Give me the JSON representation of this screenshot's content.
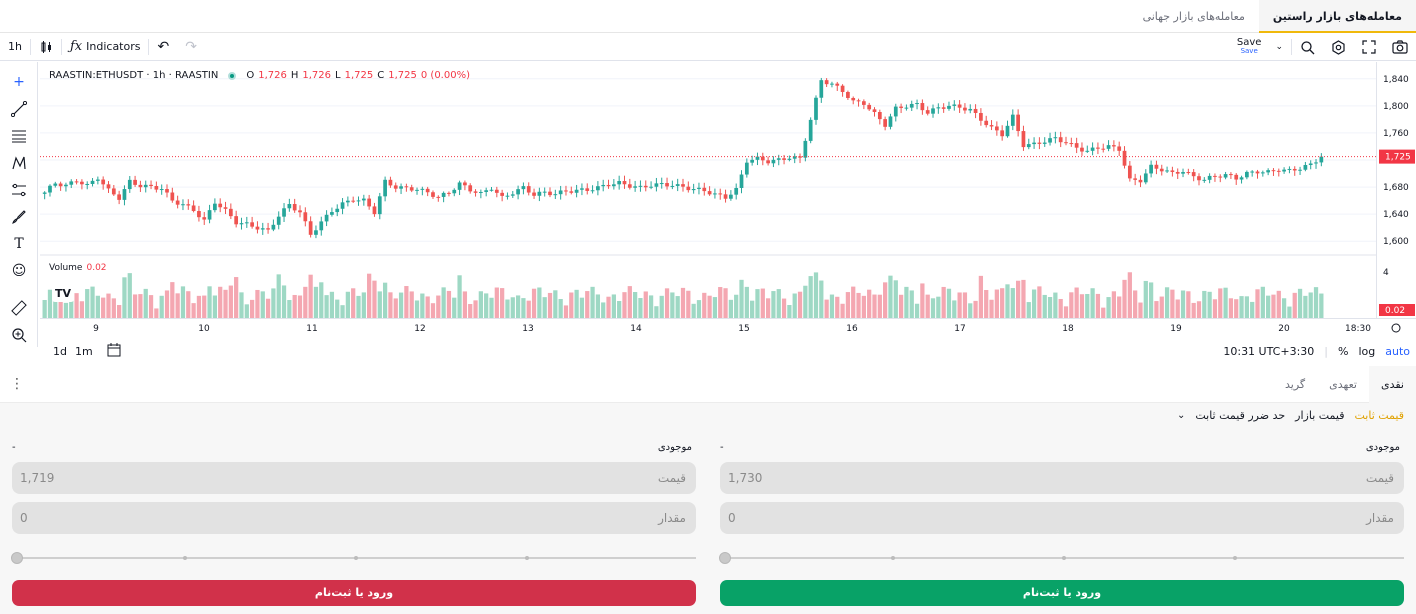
{
  "top_tabs": [
    {
      "label": "معامله‌های بازار راستین",
      "active": true
    },
    {
      "label": "معامله‌های بازار جهانی",
      "active": false
    }
  ],
  "toolbar": {
    "interval": "1h",
    "indicators_label": "Indicators",
    "save_label": "Save",
    "save_sub": "Save"
  },
  "legend": {
    "symbol": "RAASTIN:ETHUSDT · 1h · RAASTIN",
    "o_label": "O",
    "o": "1,726",
    "h_label": "H",
    "h": "1,726",
    "l_label": "L",
    "l": "1,725",
    "c_label": "C",
    "c": "1,725",
    "change": "0 (0.00%)"
  },
  "volume_legend": {
    "label": "Volume",
    "value": "0.02"
  },
  "price_axis": {
    "ticks": [
      "1,840",
      "1,800",
      "1,760",
      "1,725",
      "1,680",
      "1,640",
      "1,600"
    ],
    "last_price": "1,725",
    "volume_tick": "4",
    "volume_last": "0.02"
  },
  "time_axis": {
    "ticks": [
      "9",
      "10",
      "11",
      "12",
      "13",
      "14",
      "15",
      "16",
      "17",
      "18",
      "19",
      "20",
      "18:30"
    ]
  },
  "bottom_bar": {
    "range_1d": "1d",
    "range_1m": "1m",
    "clock": "10:31 UTC+3:30",
    "percent": "%",
    "log": "log",
    "auto": "auto"
  },
  "order_panel": {
    "mode_tabs": [
      {
        "label": "نقدی",
        "active": true
      },
      {
        "label": "تعهدی",
        "active": false
      },
      {
        "label": "گرید",
        "active": false
      }
    ],
    "order_types": [
      {
        "label": "قیمت ثابت",
        "active": true
      },
      {
        "label": "قیمت بازار",
        "active": false
      },
      {
        "label": "حد ضرر قیمت ثابت",
        "active": false
      }
    ],
    "buy": {
      "available_label": "موجودی",
      "available_value": "-",
      "price_label": "قیمت",
      "price_value": "1,730",
      "amount_label": "مقدار",
      "amount_value": "0",
      "button_label": "ورود یا ثبت‌نام",
      "color": "#08a267"
    },
    "sell": {
      "available_label": "موجودی",
      "available_value": "-",
      "price_label": "قیمت",
      "price_value": "1,719",
      "amount_label": "مقدار",
      "amount_value": "0",
      "button_label": "ورود یا ثبت‌نام",
      "color": "#d1314a"
    }
  },
  "chart_data": {
    "type": "candlestick",
    "title": "RAASTIN:ETHUSDT · 1h · RAASTIN",
    "up_color": "#26a69a",
    "down_color": "#ef5350",
    "y_range": [
      1590,
      1850
    ],
    "y_ticks": [
      1600,
      1640,
      1680,
      1720,
      1760,
      1800,
      1840
    ],
    "last_price": 1725,
    "x_ticks": [
      "9",
      "10",
      "11",
      "12",
      "13",
      "14",
      "15",
      "16",
      "17",
      "18",
      "19",
      "20",
      "18:30"
    ],
    "close_path": [
      1672,
      1686,
      1682,
      1690,
      1682,
      1694,
      1675,
      1664,
      1688,
      1682,
      1680,
      1678,
      1660,
      1654,
      1646,
      1630,
      1658,
      1645,
      1628,
      1625,
      1620,
      1615,
      1638,
      1654,
      1643,
      1610,
      1628,
      1645,
      1655,
      1662,
      1660,
      1643,
      1688,
      1680,
      1678,
      1677,
      1672,
      1665,
      1672,
      1685,
      1676,
      1670,
      1679,
      1664,
      1672,
      1679,
      1669,
      1672,
      1670,
      1674,
      1675,
      1676,
      1679,
      1684,
      1686,
      1682,
      1679,
      1683,
      1684,
      1683,
      1680,
      1677,
      1675,
      1669,
      1665,
      1676,
      1719,
      1722,
      1718,
      1720,
      1724,
      1722,
      1780,
      1838,
      1832,
      1822,
      1806,
      1804,
      1788,
      1772,
      1796,
      1800,
      1802,
      1790,
      1797,
      1800,
      1798,
      1794,
      1780,
      1767,
      1758,
      1784,
      1742,
      1743,
      1748,
      1752,
      1746,
      1738,
      1733,
      1738,
      1740,
      1736,
      1690,
      1690,
      1710,
      1706,
      1700,
      1704,
      1695,
      1691,
      1696,
      1698,
      1693,
      1700,
      1703,
      1702,
      1706,
      1704,
      1708,
      1713,
      1725
    ],
    "volume_max": 4,
    "volume_last": 0.02
  }
}
